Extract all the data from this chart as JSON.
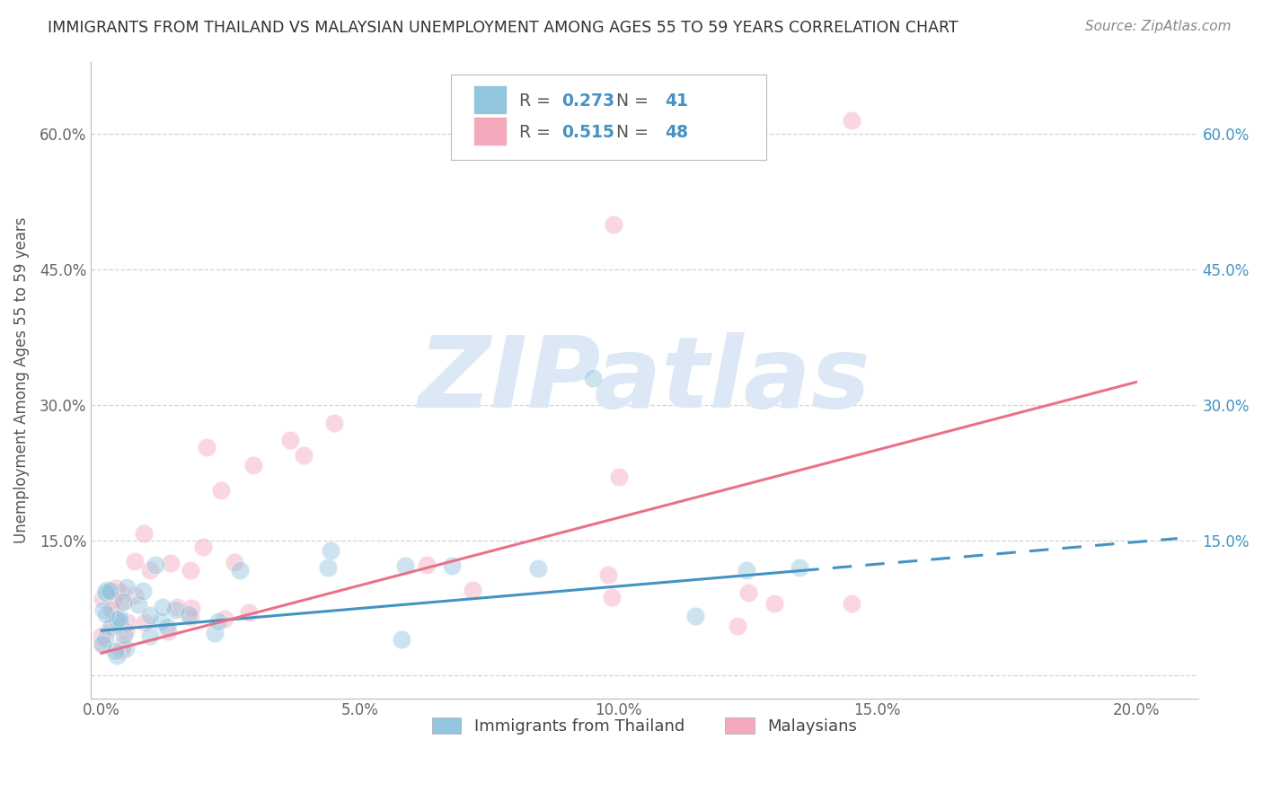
{
  "title": "IMMIGRANTS FROM THAILAND VS MALAYSIAN UNEMPLOYMENT AMONG AGES 55 TO 59 YEARS CORRELATION CHART",
  "source": "Source: ZipAtlas.com",
  "ylabel": "Unemployment Among Ages 55 to 59 years",
  "legend_label1": "Immigrants from Thailand",
  "legend_label2": "Malaysians",
  "R1": "0.273",
  "N1": "41",
  "R2": "0.515",
  "N2": "48",
  "color1": "#92c5de",
  "color2": "#f4a8bc",
  "trendline1_color": "#4393c3",
  "trendline2_color": "#e8728a",
  "legend_text_color": "#4393c3",
  "background_color": "#ffffff",
  "grid_color": "#d0d0d0",
  "watermark_color": "#dce8f5",
  "xtick_labels": [
    "0.0%",
    "5.0%",
    "10.0%",
    "15.0%",
    "20.0%"
  ],
  "xtick_vals": [
    0.0,
    0.05,
    0.1,
    0.15,
    0.2
  ],
  "ytick_labels_left": [
    "",
    "15.0%",
    "30.0%",
    "45.0%",
    "60.0%"
  ],
  "ytick_labels_right": [
    "15.0%",
    "30.0%",
    "45.0%",
    "60.0%"
  ],
  "ytick_vals": [
    0.0,
    0.15,
    0.3,
    0.45,
    0.6
  ],
  "xlim": [
    -0.002,
    0.212
  ],
  "ylim": [
    -0.025,
    0.68
  ],
  "trendline1_x0": 0.0,
  "trendline1_y0": 0.05,
  "trendline1_x1": 0.2,
  "trendline1_y1": 0.148,
  "trendline1_solid_end": 0.135,
  "trendline2_x0": 0.0,
  "trendline2_y0": 0.025,
  "trendline2_x1": 0.2,
  "trendline2_y1": 0.325
}
